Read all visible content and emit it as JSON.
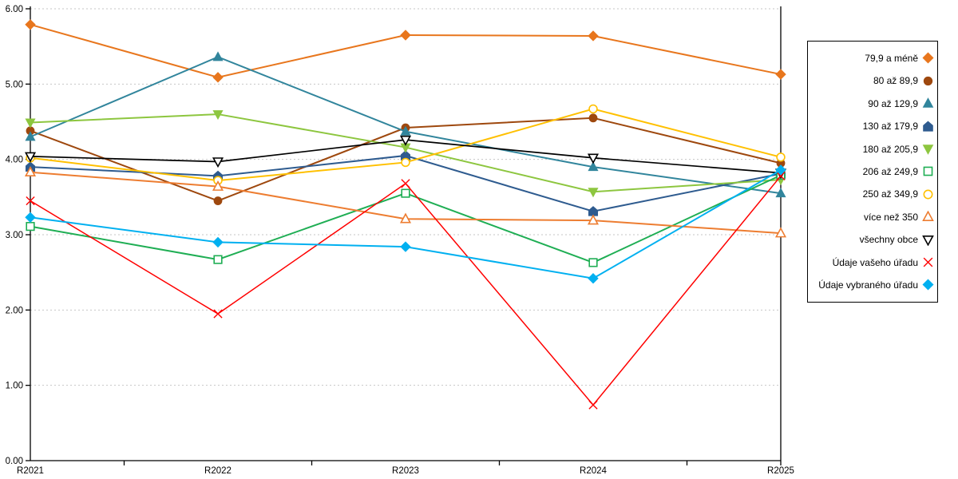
{
  "chart_data": {
    "type": "line",
    "title": "",
    "xlabel": "",
    "ylabel": "",
    "categories": [
      "R2021",
      "R2022",
      "R2023",
      "R2024",
      "R2025"
    ],
    "ylim": [
      0,
      6
    ],
    "ytick_step": 1,
    "ytick_labels": [
      "0.00",
      "1.00",
      "2.00",
      "3.00",
      "4.00",
      "5.00",
      "6.00"
    ],
    "grid": "horizontal-dashed",
    "grid_color": "#c6c6c6",
    "axis_color": "#000000",
    "legend_position": "right-box",
    "series": [
      {
        "name": "79,9 a méně",
        "color": "#e8761d",
        "marker": "diamond",
        "filled": true,
        "line_width": 2,
        "values": [
          5.79,
          5.09,
          5.65,
          5.64,
          5.13
        ]
      },
      {
        "name": "80 až 89,9",
        "color": "#9e480e",
        "marker": "circle",
        "filled": true,
        "line_width": 2,
        "values": [
          4.38,
          3.45,
          4.42,
          4.55,
          3.95
        ]
      },
      {
        "name": "90 až 129,9",
        "color": "#31859c",
        "marker": "triangle-up",
        "filled": true,
        "line_width": 2,
        "values": [
          4.3,
          5.36,
          4.37,
          3.9,
          3.55
        ]
      },
      {
        "name": "130 až 179,9",
        "color": "#2e5b8f",
        "marker": "pentagon",
        "filled": true,
        "line_width": 2,
        "values": [
          3.9,
          3.78,
          4.05,
          3.31,
          3.81
        ]
      },
      {
        "name": "180 až 205,9",
        "color": "#8dc63f",
        "marker": "triangle-down",
        "filled": true,
        "line_width": 2,
        "values": [
          4.49,
          4.6,
          4.16,
          3.57,
          3.73
        ]
      },
      {
        "name": "206 až 249,9",
        "color": "#1fae54",
        "marker": "square",
        "filled": false,
        "line_width": 2,
        "values": [
          3.11,
          2.67,
          3.55,
          2.63,
          3.79
        ]
      },
      {
        "name": "250 až 349,9",
        "color": "#ffc000",
        "marker": "circle",
        "filled": false,
        "line_width": 2,
        "values": [
          4.02,
          3.72,
          3.96,
          4.67,
          4.03
        ]
      },
      {
        "name": "více než 350",
        "color": "#ed7d31",
        "marker": "triangle-up",
        "filled": false,
        "line_width": 2,
        "values": [
          3.83,
          3.64,
          3.21,
          3.19,
          3.02
        ]
      },
      {
        "name": "všechny obce",
        "color": "#000000",
        "marker": "triangle-down",
        "filled": false,
        "line_width": 1.7,
        "values": [
          4.04,
          3.97,
          4.26,
          4.02,
          3.82
        ]
      },
      {
        "name": "Údaje vašeho úřadu",
        "color": "#ff0000",
        "marker": "x",
        "filled": false,
        "line_width": 1.5,
        "values": [
          3.45,
          1.95,
          3.68,
          0.74,
          3.78
        ]
      },
      {
        "name": "Údaje vybraného úřadu",
        "color": "#00b0f0",
        "marker": "diamond",
        "filled": true,
        "line_width": 2,
        "values": [
          3.23,
          2.9,
          2.84,
          2.42,
          3.86
        ]
      }
    ]
  }
}
